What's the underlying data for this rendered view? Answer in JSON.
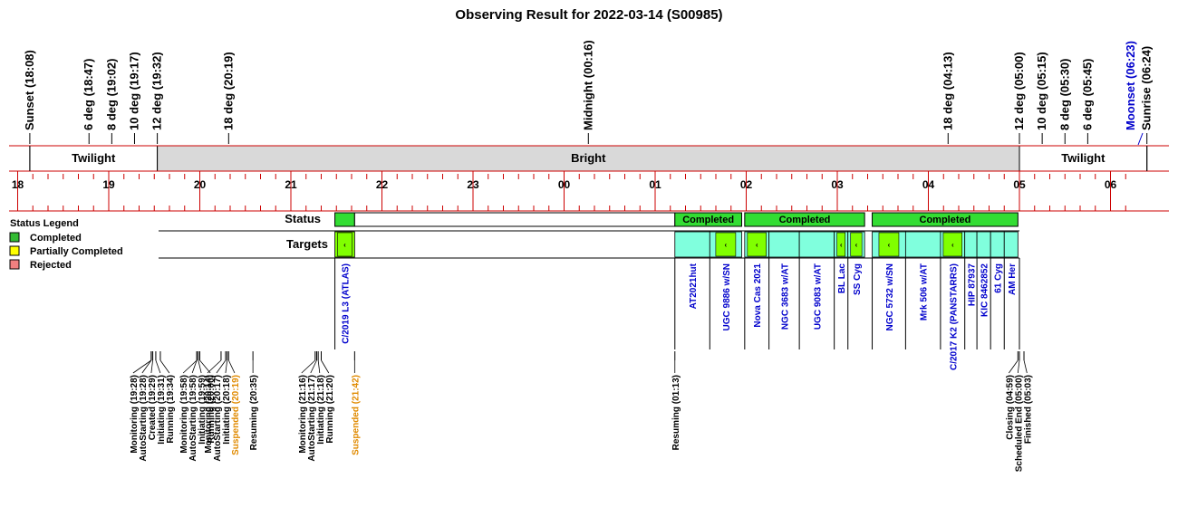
{
  "chart_data": {
    "type": "timeline",
    "title": "Observing Result for 2022-03-14 (S00985)",
    "sky_events": [
      {
        "label": "Sunset (18:08)",
        "t": "18:08"
      },
      {
        "label": "6 deg (18:47)",
        "t": "18:47"
      },
      {
        "label": "8 deg (19:02)",
        "t": "19:02"
      },
      {
        "label": "10 deg (19:17)",
        "t": "19:17"
      },
      {
        "label": "12 deg (19:32)",
        "t": "19:32"
      },
      {
        "label": "18 deg (20:19)",
        "t": "20:19"
      },
      {
        "label": "Midnight (00:16)",
        "t": "00:16"
      },
      {
        "label": "18 deg (04:13)",
        "t": "04:13"
      },
      {
        "label": "12 deg (05:00)",
        "t": "05:00"
      },
      {
        "label": "10 deg (05:15)",
        "t": "05:15"
      },
      {
        "label": "8 deg (05:30)",
        "t": "05:30"
      },
      {
        "label": "6 deg (05:45)",
        "t": "05:45"
      },
      {
        "label": "Sunrise (06:24)",
        "t": "06:24"
      }
    ],
    "moonset": {
      "label": "Moonset (06:23)",
      "t": "06:23"
    },
    "phases": [
      {
        "label": "Twilight",
        "start": "18:08",
        "end": "19:32",
        "fill": "#ffffff"
      },
      {
        "label": "Bright",
        "start": "19:32",
        "end": "05:00",
        "fill": "#d9d9d9"
      },
      {
        "label": "Twilight",
        "start": "05:00",
        "end": "06:24",
        "fill": "#ffffff"
      }
    ],
    "hour_ticks": [
      "18",
      "19",
      "20",
      "21",
      "22",
      "23",
      "00",
      "01",
      "02",
      "03",
      "04",
      "05",
      "06"
    ],
    "row_labels": {
      "status": "Status",
      "targets": "Targets"
    },
    "legend": {
      "title": "Status Legend",
      "items": [
        {
          "label": "Completed",
          "color": "#33bb33"
        },
        {
          "label": "Partially Completed",
          "color": "#ffff00"
        },
        {
          "label": "Rejected",
          "color": "#f08080"
        }
      ]
    },
    "status_bars": [
      {
        "start": "21:29",
        "end": "21:42",
        "status": "completed",
        "label": ""
      },
      {
        "start": "21:42",
        "end": "01:13",
        "status": "suspended",
        "label": ""
      },
      {
        "start": "01:13",
        "end": "01:57",
        "status": "completed",
        "label": "Completed"
      },
      {
        "start": "01:59",
        "end": "03:18",
        "status": "completed",
        "label": "Completed"
      },
      {
        "start": "03:23",
        "end": "04:59",
        "status": "completed",
        "label": "Completed"
      }
    ],
    "targets": [
      {
        "name": "C/2019 L3 (ATLAS)",
        "start": "21:29",
        "end": "21:42",
        "mark": true
      },
      {
        "name": "AT2021hut",
        "start": "01:13",
        "end": "01:36",
        "mark": false
      },
      {
        "name": "UGC 9886 w/SN",
        "start": "01:36",
        "end": "01:57",
        "mark": true
      },
      {
        "name": "Nova Cas 2021",
        "start": "01:59",
        "end": "02:15",
        "mark": true
      },
      {
        "name": "NGC 3683 w/AT",
        "start": "02:15",
        "end": "02:35",
        "mark": false
      },
      {
        "name": "UGC 9083 w/AT",
        "start": "02:35",
        "end": "02:58",
        "mark": false
      },
      {
        "name": "BL Lac",
        "start": "02:58",
        "end": "03:07",
        "mark": true
      },
      {
        "name": "SS Cyg",
        "start": "03:07",
        "end": "03:18",
        "mark": true
      },
      {
        "name": "NGC 5732 w/SN",
        "start": "03:23",
        "end": "03:45",
        "mark": true
      },
      {
        "name": "Mrk 506 w/AT",
        "start": "03:45",
        "end": "04:08",
        "mark": false
      },
      {
        "name": "C/2017 K2 (PANSTARRS)",
        "start": "04:08",
        "end": "04:24",
        "mark": true
      },
      {
        "name": "HIP 87937",
        "start": "04:24",
        "end": "04:32",
        "mark": false
      },
      {
        "name": "KIC 8462852",
        "start": "04:32",
        "end": "04:41",
        "mark": false
      },
      {
        "name": "61 Cyg",
        "start": "04:41",
        "end": "04:50",
        "mark": false
      },
      {
        "name": "AM Her",
        "start": "04:50",
        "end": "04:59",
        "mark": false
      }
    ],
    "events": [
      {
        "label": "Monitoring (19:28)",
        "t": "19:28",
        "color": "#000000"
      },
      {
        "label": "AutoStarting (19:28)",
        "t": "19:28",
        "color": "#000000"
      },
      {
        "label": "Created (19:29)",
        "t": "19:29",
        "color": "#000000"
      },
      {
        "label": "Initiating (19:31)",
        "t": "19:31",
        "color": "#000000"
      },
      {
        "label": "Running (19:34)",
        "t": "19:34",
        "color": "#000000"
      },
      {
        "label": "Monitoring (19:58)",
        "t": "19:58",
        "color": "#000000"
      },
      {
        "label": "AutoStarting (19:58)",
        "t": "19:58",
        "color": "#000000"
      },
      {
        "label": "Initiating (19:59)",
        "t": "19:59",
        "color": "#000000"
      },
      {
        "label": "Running (20:00)",
        "t": "20:00",
        "color": "#000000"
      },
      {
        "label": "Monitoring (20:14)",
        "t": "20:14",
        "color": "#000000"
      },
      {
        "label": "AutoStarting (20:17)",
        "t": "20:17",
        "color": "#000000"
      },
      {
        "label": "Initiating (20:18)",
        "t": "20:18",
        "color": "#000000"
      },
      {
        "label": "Suspended (20:19)",
        "t": "20:19",
        "color": "#e08a00"
      },
      {
        "label": "Resuming (20:35)",
        "t": "20:35",
        "color": "#000000"
      },
      {
        "label": "Monitoring (21:16)",
        "t": "21:16",
        "color": "#000000"
      },
      {
        "label": "AutoStarting (21:17)",
        "t": "21:17",
        "color": "#000000"
      },
      {
        "label": "Initiating (21:18)",
        "t": "21:18",
        "color": "#000000"
      },
      {
        "label": "Running (21:20)",
        "t": "21:20",
        "color": "#000000"
      },
      {
        "label": "Suspended (21:42)",
        "t": "21:42",
        "color": "#e08a00"
      },
      {
        "label": "Resuming (01:13)",
        "t": "01:13",
        "color": "#000000"
      },
      {
        "label": "Closing (04:59)",
        "t": "04:59",
        "color": "#000000"
      },
      {
        "label": "Scheduled End (05:00)",
        "t": "05:00",
        "color": "#000000"
      },
      {
        "label": "Finished (05:03)",
        "t": "05:03",
        "color": "#000000"
      }
    ],
    "colors": {
      "grid_red": "#cc0000",
      "completed": "#33dd33",
      "target_cell": "#80ffdd",
      "target_mark": "#80ff00",
      "target_label": "#0000cc",
      "moonset": "#0000cc",
      "suspended": "#e08a00"
    }
  }
}
